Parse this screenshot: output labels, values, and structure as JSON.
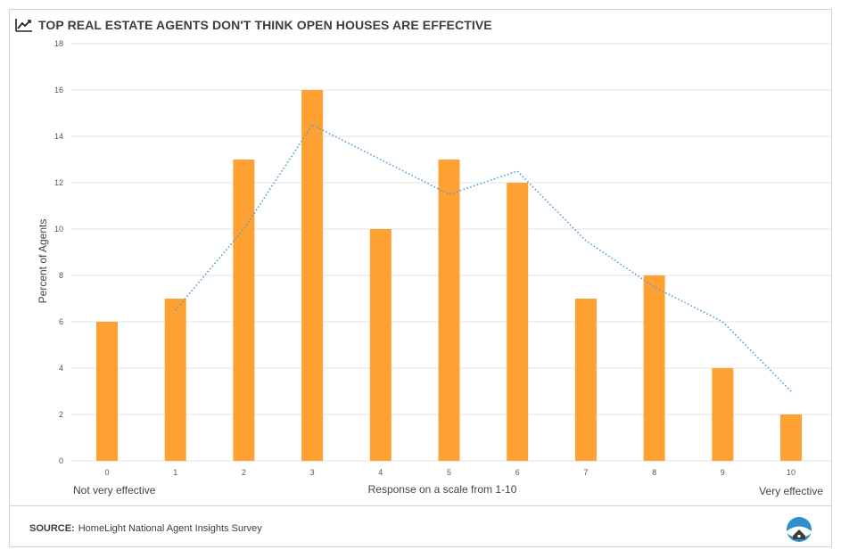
{
  "header": {
    "title": "TOP REAL ESTATE AGENTS DON'T THINK OPEN HOUSES ARE EFFECTIVE",
    "icon": "trend-line-icon"
  },
  "footer": {
    "source_label": "SOURCE:",
    "source_text": "HomeLight National Agent Insights Survey",
    "logo": "homelight-logo"
  },
  "annotations": {
    "left": "Not very effective",
    "right": "Very effective"
  },
  "colors": {
    "bar": "#ffa132",
    "trend": "#4a9fd4",
    "grid": "#e3e3e3",
    "logo": "#2e8fd0"
  },
  "chart_data": {
    "type": "bar",
    "categories": [
      "0",
      "1",
      "2",
      "3",
      "4",
      "5",
      "6",
      "7",
      "8",
      "9",
      "10"
    ],
    "values": [
      6,
      7,
      13,
      16,
      10,
      13,
      12,
      7,
      8,
      4,
      2
    ],
    "trendline": {
      "x": [
        "1",
        "2",
        "3",
        "4",
        "5",
        "6",
        "7",
        "8",
        "9",
        "10"
      ],
      "values": [
        6.5,
        10,
        14.5,
        13,
        11.5,
        12.5,
        9.5,
        7.5,
        6,
        3
      ]
    },
    "title": "TOP REAL ESTATE AGENTS DON'T THINK OPEN HOUSES ARE EFFECTIVE",
    "xlabel": "Response on a scale from 1-10",
    "ylabel": "Percent of Agents",
    "ylim": [
      0,
      18
    ],
    "yticks": [
      0,
      2,
      4,
      6,
      8,
      10,
      12,
      14,
      16,
      18
    ],
    "grid": true,
    "legend": "none"
  }
}
